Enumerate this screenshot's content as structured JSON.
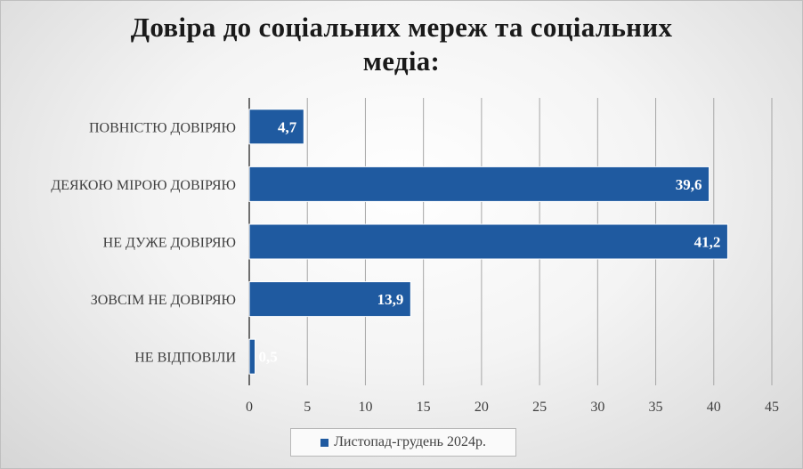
{
  "title_lines": [
    "Довіра до соціальних мереж та соціальних",
    "медіа:"
  ],
  "colors": {
    "bar": "#1f5aa0",
    "grid": "#a6a6a6",
    "label": "#404040"
  },
  "chart_data": {
    "type": "bar",
    "orientation": "horizontal",
    "title": "Довіра до соціальних мереж та соціальних медіа:",
    "categories": [
      "ПОВНІСТЮ ДОВІРЯЮ",
      "ДЕЯКОЮ МІРОЮ ДОВІРЯЮ",
      "НЕ ДУЖЕ ДОВІРЯЮ",
      "ЗОВСІМ НЕ ДОВІРЯЮ",
      "НЕ ВІДПОВІЛИ"
    ],
    "series": [
      {
        "name": "Листопад-грудень 2024р.",
        "values": [
          4.7,
          39.6,
          41.2,
          13.9,
          0.5
        ]
      }
    ],
    "data_labels": [
      "4,7",
      "39,6",
      "41,2",
      "13,9",
      "0,5"
    ],
    "xlim": [
      0,
      45
    ],
    "xticks": [
      0,
      5,
      10,
      15,
      20,
      25,
      30,
      35,
      40,
      45
    ],
    "grid": true,
    "legend_position": "bottom"
  }
}
